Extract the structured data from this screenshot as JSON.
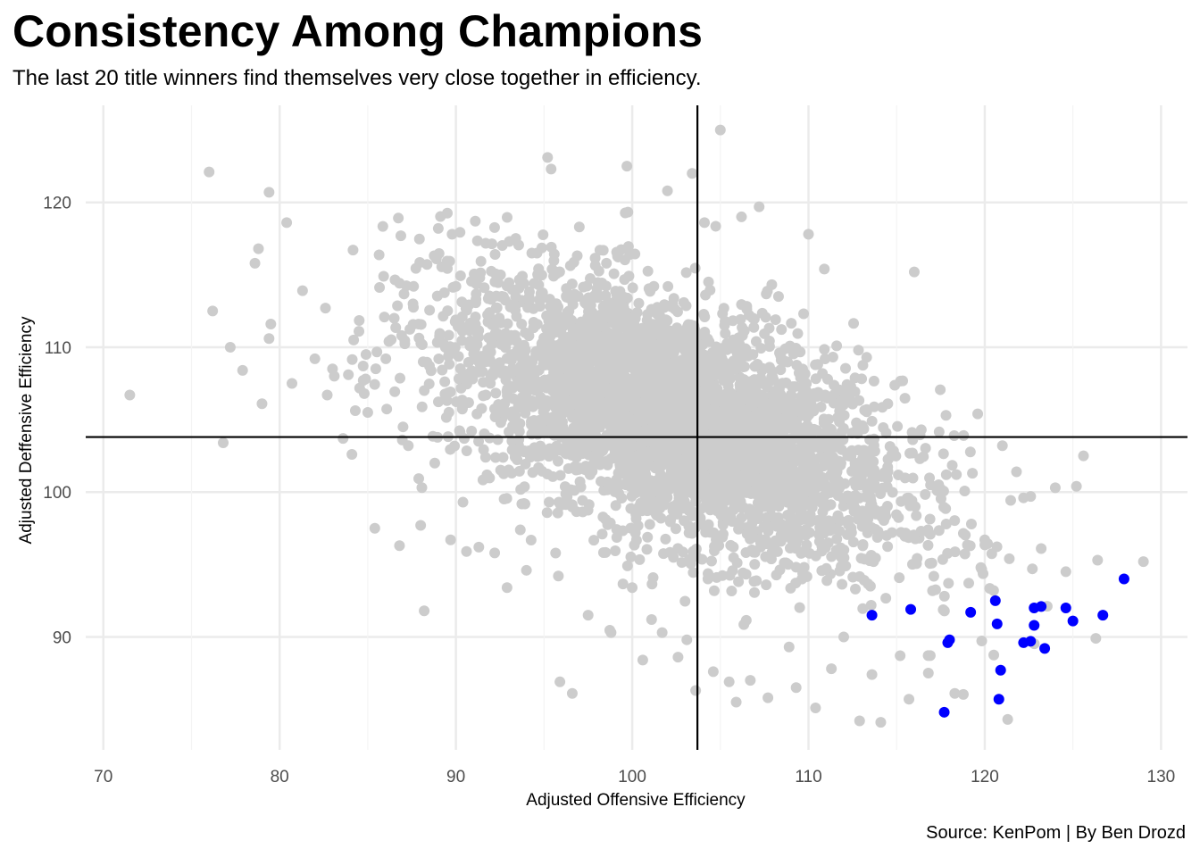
{
  "chart_data": {
    "type": "scatter",
    "title": "Consistency Among Champions",
    "subtitle": "The last 20 title winners find themselves very close together in efficiency.",
    "caption": "Source: KenPom | By Ben Drozd",
    "xlabel": "Adjusted Offensive Efficiency",
    "ylabel": "Adjusted Deffensive Efficiency",
    "xlim": [
      69,
      131.5
    ],
    "ylim": [
      82.2,
      126.7
    ],
    "x_ticks": [
      70,
      80,
      90,
      100,
      110,
      120,
      130
    ],
    "y_ticks": [
      90,
      100,
      110,
      120
    ],
    "grid": true,
    "reference_lines": {
      "x": 103.7,
      "y": 103.8
    },
    "colors": {
      "all_teams": "#cccccc",
      "champions": "#0000ff",
      "reference_line": "#000000",
      "grid": "#ebebeb"
    },
    "series": [
      {
        "points": [
          [
            71.5,
            106.7
          ],
          [
            76.0,
            122.1
          ],
          [
            76.2,
            112.5
          ],
          [
            76.8,
            103.4
          ],
          [
            77.2,
            110.0
          ],
          [
            77.9,
            108.4
          ],
          [
            78.6,
            115.8
          ],
          [
            78.8,
            116.8
          ],
          [
            79.0,
            106.1
          ],
          [
            79.4,
            120.7
          ],
          [
            79.5,
            111.6
          ],
          [
            79.4,
            110.6
          ],
          [
            80.4,
            118.6
          ],
          [
            80.7,
            107.5
          ],
          [
            81.3,
            113.9
          ],
          [
            82.0,
            109.2
          ],
          [
            82.6,
            112.7
          ],
          [
            82.7,
            106.7
          ],
          [
            83.1,
            108.0
          ],
          [
            83.0,
            108.5
          ],
          [
            83.6,
            103.7
          ],
          [
            83.9,
            108.1
          ],
          [
            84.1,
            102.6
          ],
          [
            84.2,
            110.5
          ],
          [
            84.5,
            111.1
          ],
          [
            84.9,
            109.5
          ],
          [
            85.0,
            105.5
          ],
          [
            84.8,
            106.8
          ],
          [
            85.4,
            97.5
          ],
          [
            85.9,
            114.9
          ],
          [
            86.2,
            110.4
          ],
          [
            86.5,
            112.0
          ],
          [
            86.8,
            96.3
          ],
          [
            87.0,
            104.5
          ],
          [
            87.3,
            103.2
          ],
          [
            87.6,
            114.2
          ],
          [
            88.0,
            97.7
          ],
          [
            88.2,
            91.8
          ],
          [
            88.5,
            108.7
          ],
          [
            88.8,
            102.0
          ],
          [
            89.0,
            118.2
          ],
          [
            89.4,
            110.0
          ],
          [
            89.7,
            96.7
          ],
          [
            90.0,
            114.2
          ],
          [
            90.4,
            99.3
          ],
          [
            90.6,
            95.9
          ],
          [
            91.1,
            118.7
          ],
          [
            91.7,
            106.7
          ],
          [
            91.3,
            96.2
          ],
          [
            92.2,
            95.8
          ],
          [
            92.6,
            108.2
          ],
          [
            92.9,
            93.4
          ],
          [
            93.2,
            109.5
          ],
          [
            94.0,
            94.6
          ],
          [
            94.6,
            116.5
          ],
          [
            95.2,
            123.1
          ],
          [
            95.4,
            122.3
          ],
          [
            95.7,
            113.0
          ],
          [
            95.9,
            86.9
          ],
          [
            96.2,
            102.7
          ],
          [
            96.6,
            86.1
          ],
          [
            97.0,
            118.3
          ],
          [
            97.5,
            91.5
          ],
          [
            98.3,
            97.1
          ],
          [
            98.8,
            90.3
          ],
          [
            99.3,
            101.9
          ],
          [
            99.7,
            122.5
          ],
          [
            100.0,
            93.4
          ],
          [
            100.6,
            88.4
          ],
          [
            101.1,
            91.2
          ],
          [
            101.7,
            90.3
          ],
          [
            102.0,
            120.8
          ],
          [
            102.6,
            88.6
          ],
          [
            103.1,
            89.8
          ],
          [
            103.4,
            122.0
          ],
          [
            103.6,
            86.3
          ],
          [
            104.1,
            118.6
          ],
          [
            104.6,
            87.6
          ],
          [
            105.0,
            125.0
          ],
          [
            105.5,
            86.9
          ],
          [
            105.9,
            85.5
          ],
          [
            106.2,
            119.0
          ],
          [
            106.7,
            87.0
          ],
          [
            107.2,
            119.7
          ],
          [
            107.7,
            85.8
          ],
          [
            108.3,
            113.5
          ],
          [
            108.9,
            89.3
          ],
          [
            109.3,
            86.5
          ],
          [
            110.0,
            117.8
          ],
          [
            110.4,
            85.1
          ],
          [
            110.9,
            115.4
          ],
          [
            111.3,
            87.8
          ],
          [
            111.6,
            110.1
          ],
          [
            112.0,
            90.0
          ],
          [
            112.4,
            107.3
          ],
          [
            112.9,
            84.2
          ],
          [
            113.3,
            109.3
          ],
          [
            113.6,
            87.4
          ],
          [
            114.1,
            84.1
          ],
          [
            114.5,
            106.1
          ],
          [
            115.2,
            88.7
          ],
          [
            115.7,
            85.7
          ],
          [
            116.0,
            115.2
          ],
          [
            116.4,
            104.3
          ],
          [
            116.8,
            87.5
          ],
          [
            117.3,
            100.1
          ],
          [
            117.8,
            105.3
          ],
          [
            118.3,
            86.1
          ],
          [
            118.8,
            103.9
          ],
          [
            119.3,
            101.3
          ],
          [
            119.6,
            105.4
          ],
          [
            120.0,
            96.7
          ],
          [
            120.5,
            93.2
          ],
          [
            121.0,
            103.2
          ],
          [
            121.3,
            84.3
          ],
          [
            121.8,
            101.4
          ],
          [
            122.2,
            99.6
          ],
          [
            122.7,
            94.7
          ],
          [
            123.2,
            96.1
          ],
          [
            124.0,
            100.3
          ],
          [
            124.6,
            94.5
          ],
          [
            125.2,
            100.4
          ],
          [
            125.6,
            102.5
          ],
          [
            126.4,
            95.3
          ],
          [
            126.3,
            89.9
          ],
          [
            129.0,
            95.2
          ]
        ]
      },
      {
        "points": [
          [
            113.6,
            91.5
          ],
          [
            115.8,
            91.9
          ],
          [
            117.9,
            89.6
          ],
          [
            118.0,
            89.8
          ],
          [
            119.2,
            91.7
          ],
          [
            120.6,
            92.5
          ],
          [
            120.7,
            90.9
          ],
          [
            120.9,
            87.7
          ],
          [
            120.8,
            85.7
          ],
          [
            117.7,
            84.8
          ],
          [
            122.2,
            89.6
          ],
          [
            122.6,
            89.7
          ],
          [
            122.8,
            90.8
          ],
          [
            122.8,
            92.0
          ],
          [
            123.2,
            92.1
          ],
          [
            123.4,
            89.2
          ],
          [
            124.6,
            92.0
          ],
          [
            125.0,
            91.1
          ],
          [
            126.7,
            91.5
          ],
          [
            127.9,
            94.0
          ]
        ]
      }
    ]
  }
}
